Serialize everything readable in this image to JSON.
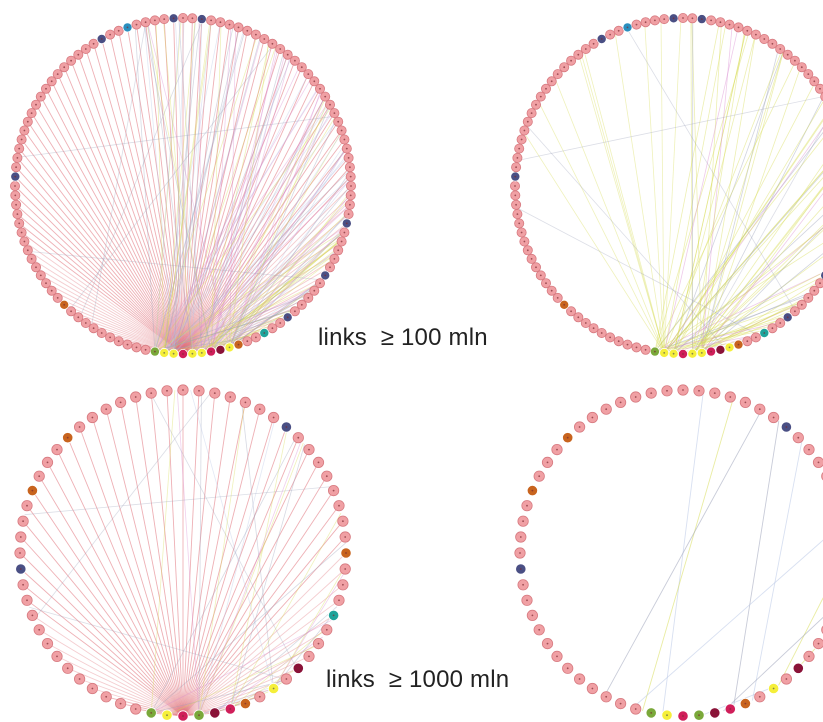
{
  "captions": {
    "top": "links  ≥ 100 mln",
    "bottom": "links  ≥ 1000 mln"
  },
  "colors": {
    "node_default": "#f0a0a4",
    "node_border": "#d77a80",
    "node_navy": "#4a4f84",
    "node_orange": "#c8641e",
    "node_teal": "#1fa39a",
    "node_blue": "#2a8fbf",
    "node_yellow": "#f5ef3a",
    "node_green": "#7aa83a",
    "node_crimson": "#d01e5a",
    "node_maroon": "#8a1238",
    "edge_red": "#e07078",
    "edge_yellow": "#d7dc55",
    "edge_pink": "#d98ad0",
    "edge_grey": "#9aa0b8",
    "edge_lightblue": "#b8c6e6"
  },
  "panels": [
    {
      "id": "panel-100-full",
      "nodes": 112,
      "edge_style": "dense-red-hub"
    },
    {
      "id": "panel-100-filtered",
      "nodes": 112,
      "edge_style": "yellow-hub"
    },
    {
      "id": "panel-1000-full",
      "nodes": 64,
      "edge_style": "dense-red-hub"
    },
    {
      "id": "panel-1000-filtered",
      "nodes": 64,
      "edge_style": "sparse"
    }
  ]
}
